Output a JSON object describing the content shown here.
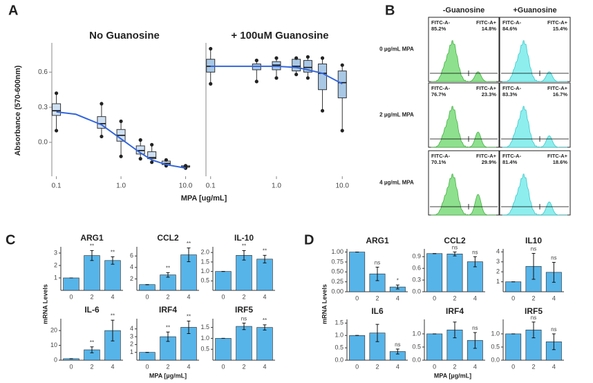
{
  "panel_labels": [
    "A",
    "B",
    "C",
    "D"
  ],
  "panel_A": {
    "ylabel": "Absorbance (570-600nm)",
    "xlabel": "MPA [ug/mL]"
  },
  "panel_C": {
    "ylabel": "mRNA Levels",
    "xlabel": "MPA [µg/mL]"
  },
  "panel_D": {
    "ylabel": "mRNA Levels",
    "xlabel": "MPA [µg/mL]"
  },
  "flow": {
    "columns": [
      "-Guanosine",
      "+Guanosine"
    ],
    "rows": [
      {
        "label": "0 µg/mL MPA",
        "cells": [
          {
            "neg_gate": "FITC-A-",
            "neg_pct": "85.2%",
            "pos_gate": "FITC-A+",
            "pos_pct": "14.8%"
          },
          {
            "neg_gate": "FITC-A-",
            "neg_pct": "84.6%",
            "pos_gate": "FITC-A+",
            "pos_pct": "15.4%"
          }
        ]
      },
      {
        "label": "2 µg/mL MPA",
        "cells": [
          {
            "neg_gate": "FITC-A-",
            "neg_pct": "76.7%",
            "pos_gate": "FITC-A+",
            "pos_pct": "23.3%"
          },
          {
            "neg_gate": "FITC-A-",
            "neg_pct": "83.3%",
            "pos_gate": "FITC-A+",
            "pos_pct": "16.7%"
          }
        ]
      },
      {
        "label": "4 µg/mL MPA",
        "cells": [
          {
            "neg_gate": "FITC-A-",
            "neg_pct": "70.1%",
            "pos_gate": "FITC-A+",
            "pos_pct": "29.9%"
          },
          {
            "neg_gate": "FITC-A-",
            "neg_pct": "81.4%",
            "pos_gate": "FITC-A+",
            "pos_pct": "18.6%"
          }
        ]
      }
    ]
  },
  "chart_data": [
    {
      "type": "box",
      "title": "No Guanosine",
      "log_x": true,
      "color": "#cfe0f3",
      "x": [
        0.1,
        0.5,
        1,
        2,
        3,
        5,
        10
      ],
      "min": [
        0.1,
        0.05,
        -0.12,
        -0.14,
        -0.17,
        -0.2,
        -0.22
      ],
      "q1": [
        0.23,
        0.12,
        0.01,
        -0.1,
        -0.14,
        -0.19,
        -0.21
      ],
      "median": [
        0.27,
        0.16,
        0.06,
        -0.07,
        -0.13,
        -0.18,
        -0.21
      ],
      "q3": [
        0.33,
        0.22,
        0.11,
        -0.03,
        -0.08,
        -0.16,
        -0.2
      ],
      "max": [
        0.42,
        0.33,
        0.18,
        0.02,
        -0.02,
        -0.15,
        -0.2
      ],
      "fit": {
        "color": "#3366dd",
        "x": [
          0.1,
          0.2,
          0.5,
          1,
          2,
          3,
          5,
          10
        ],
        "y": [
          0.26,
          0.24,
          0.15,
          0.03,
          -0.09,
          -0.15,
          -0.19,
          -0.22
        ]
      },
      "xlim": [
        0.085,
        15
      ],
      "ylim": [
        -0.29,
        0.85
      ],
      "xticks": [
        0.1,
        {
          "value": 1,
          "label": "1.0"
        },
        {
          "value": 10,
          "label": "10.0"
        }
      ],
      "yticks": [
        {
          "value": 0,
          "label": "0.0"
        },
        0.3,
        0.6
      ]
    },
    {
      "type": "box",
      "title": "+ 100uM Guanosine",
      "log_x": true,
      "color": "#a9c8e6",
      "x": [
        0.1,
        0.5,
        1,
        2,
        3,
        5,
        10
      ],
      "min": [
        0.5,
        0.52,
        0.55,
        0.58,
        0.55,
        0.27,
        0.1
      ],
      "q1": [
        0.6,
        0.62,
        0.62,
        0.61,
        0.6,
        0.45,
        0.38
      ],
      "median": [
        0.65,
        0.65,
        0.66,
        0.65,
        0.64,
        0.59,
        0.51
      ],
      "q3": [
        0.71,
        0.67,
        0.69,
        0.71,
        0.7,
        0.67,
        0.61
      ],
      "max": [
        0.8,
        0.7,
        0.72,
        0.72,
        0.73,
        0.72,
        0.66
      ],
      "fit": {
        "color": "#3366dd",
        "x": [
          0.1,
          0.5,
          1,
          2,
          3,
          5,
          10
        ],
        "y": [
          0.65,
          0.65,
          0.65,
          0.64,
          0.62,
          0.59,
          0.5
        ]
      },
      "xlim": [
        0.085,
        15
      ],
      "ylim": [
        -0.29,
        0.85
      ],
      "xticks": [
        0.1,
        {
          "value": 1,
          "label": "1.0"
        },
        {
          "value": 10,
          "label": "10.0"
        }
      ]
    },
    {
      "type": "bar",
      "title": "ARG1",
      "color": "#56b4e9",
      "categories": [
        "0",
        "2",
        "4"
      ],
      "values": [
        1,
        2.8,
        2.4
      ],
      "errors": [
        0,
        0.4,
        0.3
      ],
      "sig": [
        null,
        "**",
        "**"
      ],
      "ylim": [
        0,
        3.5
      ],
      "yticks": [
        1,
        2,
        3
      ]
    },
    {
      "type": "bar",
      "title": "CCL2",
      "color": "#56b4e9",
      "categories": [
        "0",
        "2",
        "4"
      ],
      "values": [
        1,
        2.7,
        6.2
      ],
      "errors": [
        0,
        0.4,
        1.2
      ],
      "sig": [
        null,
        "**",
        "**"
      ],
      "ylim": [
        0,
        7.6
      ],
      "yticks": [
        2,
        4,
        6
      ]
    },
    {
      "type": "bar",
      "title": "IL-10",
      "color": "#56b4e9",
      "categories": [
        "0",
        "2",
        "4"
      ],
      "values": [
        1,
        1.85,
        1.65
      ],
      "errors": [
        0,
        0.25,
        0.2
      ],
      "sig": [
        null,
        "**",
        "**"
      ],
      "ylim": [
        0,
        2.3
      ],
      "yticks": [
        0.5,
        {
          "value": 1,
          "label": "1.0"
        },
        1.5,
        {
          "value": 2,
          "label": "2.0"
        }
      ]
    },
    {
      "type": "bar",
      "title": "IL-6",
      "color": "#56b4e9",
      "categories": [
        "0",
        "2",
        "4"
      ],
      "values": [
        1,
        7,
        20
      ],
      "errors": [
        0,
        2,
        7
      ],
      "sig": [
        null,
        "**",
        "**"
      ],
      "ylim": [
        0,
        28
      ],
      "yticks": [
        0,
        10,
        20
      ]
    },
    {
      "type": "bar",
      "title": "IRF4",
      "color": "#56b4e9",
      "categories": [
        "0",
        "2",
        "4"
      ],
      "values": [
        1,
        3,
        4.2
      ],
      "errors": [
        0,
        0.6,
        0.8
      ],
      "sig": [
        null,
        "**",
        "**"
      ],
      "ylim": [
        0,
        5.3
      ],
      "yticks": [
        1,
        2,
        3,
        4
      ]
    },
    {
      "type": "bar",
      "title": "IRF5",
      "color": "#56b4e9",
      "categories": [
        "0",
        "2",
        "4"
      ],
      "values": [
        1,
        1.55,
        1.5
      ],
      "errors": [
        0,
        0.15,
        0.12
      ],
      "sig": [
        null,
        "ns",
        "**"
      ],
      "ylim": [
        0,
        1.9
      ],
      "yticks": [
        0.5,
        {
          "value": 1,
          "label": "1.0"
        },
        1.5
      ]
    },
    {
      "type": "bar",
      "title": "ARG1",
      "color": "#56b4e9",
      "categories": [
        "0",
        "2",
        "4"
      ],
      "values": [
        1,
        0.45,
        0.12
      ],
      "errors": [
        0,
        0.17,
        0.05
      ],
      "sig": [
        null,
        "ns",
        "*"
      ],
      "ylim": [
        0,
        1.08
      ],
      "yticks": [
        {
          "value": 0,
          "label": "0.00"
        },
        0.25,
        {
          "value": 0.5,
          "label": "0.50"
        },
        0.75,
        {
          "value": 1,
          "label": "1.00"
        }
      ]
    },
    {
      "type": "bar",
      "title": "CCL2",
      "color": "#56b4e9",
      "categories": [
        "0",
        "2",
        "4"
      ],
      "values": [
        0.98,
        0.97,
        0.77
      ],
      "errors": [
        0,
        0.05,
        0.13
      ],
      "sig": [
        null,
        "ns",
        "ns"
      ],
      "ylim": [
        0,
        1.1
      ],
      "yticks": [
        {
          "value": 0,
          "label": "0.0"
        },
        0.3,
        0.6,
        0.9
      ]
    },
    {
      "type": "bar",
      "title": "IL10",
      "color": "#56b4e9",
      "categories": [
        "0",
        "2",
        "4"
      ],
      "values": [
        1,
        2.55,
        1.95
      ],
      "errors": [
        0,
        1.3,
        1.0
      ],
      "sig": [
        null,
        "ns",
        "ns"
      ],
      "ylim": [
        0,
        4.3
      ],
      "yticks": [
        1,
        2,
        3,
        4
      ]
    },
    {
      "type": "bar",
      "title": "IL6",
      "color": "#56b4e9",
      "categories": [
        "0",
        "2",
        "4"
      ],
      "values": [
        1,
        1.1,
        0.35
      ],
      "errors": [
        0,
        0.35,
        0.1
      ],
      "sig": [
        null,
        null,
        "ns"
      ],
      "ylim": [
        0,
        1.65
      ],
      "yticks": [
        {
          "value": 0,
          "label": "0.0"
        },
        0.5,
        {
          "value": 1,
          "label": "1.0"
        },
        1.5
      ]
    },
    {
      "type": "bar",
      "title": "IRF4",
      "color": "#56b4e9",
      "categories": [
        "0",
        "2",
        "4"
      ],
      "values": [
        1,
        1.15,
        0.75
      ],
      "errors": [
        0,
        0.3,
        0.3
      ],
      "sig": [
        null,
        null,
        "ns"
      ],
      "ylim": [
        0,
        1.55
      ],
      "yticks": [
        {
          "value": 0,
          "label": "0.0"
        },
        0.5,
        {
          "value": 1,
          "label": "1.0"
        }
      ]
    },
    {
      "type": "bar",
      "title": "IRF5",
      "color": "#56b4e9",
      "categories": [
        "0",
        "2",
        "4"
      ],
      "values": [
        1,
        1.15,
        0.7
      ],
      "errors": [
        0,
        0.3,
        0.3
      ],
      "sig": [
        null,
        "ns",
        "ns"
      ],
      "ylim": [
        0,
        1.55
      ],
      "yticks": [
        {
          "value": 0,
          "label": "0.0"
        },
        0.5,
        {
          "value": 1,
          "label": "1.0"
        }
      ]
    }
  ]
}
